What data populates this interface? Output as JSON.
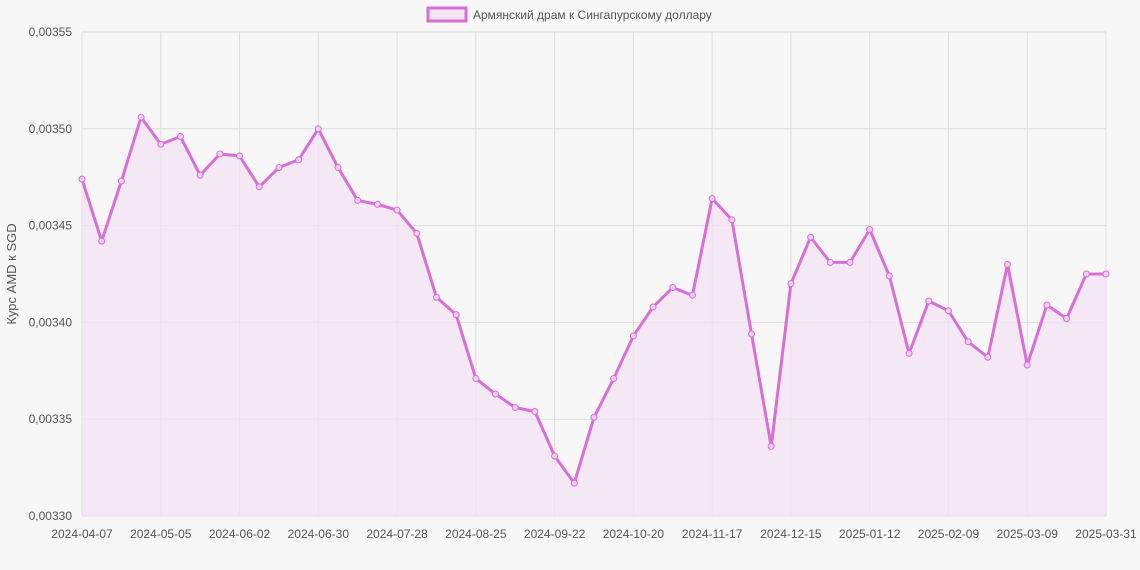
{
  "chart_data": {
    "type": "line",
    "title": "",
    "xlabel": "",
    "ylabel": "Курс AMD к SGD",
    "ylim": [
      0.0033,
      0.00355
    ],
    "y_ticks": [
      "0,00330",
      "0,00335",
      "0,00340",
      "0,00345",
      "0,00350",
      "0,00355"
    ],
    "y_tick_values": [
      0.0033,
      0.00335,
      0.0034,
      0.00345,
      0.0035,
      0.00355
    ],
    "x_ticks": [
      "2024-04-07",
      "2024-05-05",
      "2024-06-02",
      "2024-06-30",
      "2024-07-28",
      "2024-08-25",
      "2024-09-22",
      "2024-10-20",
      "2024-11-17",
      "2024-12-15",
      "2025-01-12",
      "2025-02-09",
      "2025-03-09",
      "2025-03-31"
    ],
    "x_tick_indices": [
      0,
      4,
      8,
      12,
      16,
      20,
      24,
      28,
      32,
      36,
      40,
      44,
      48,
      52
    ],
    "grid": true,
    "legend_position": "top-center",
    "series": [
      {
        "name": "Армянский драм к Сингапурскому доллару",
        "color": "#d86fd8",
        "fill_color": "#f3e3f3",
        "values": [
          0.003474,
          0.003442,
          0.003473,
          0.003506,
          0.003492,
          0.003496,
          0.003476,
          0.003487,
          0.003486,
          0.00347,
          0.00348,
          0.003484,
          0.0035,
          0.00348,
          0.003463,
          0.003461,
          0.003458,
          0.003446,
          0.003413,
          0.003404,
          0.003371,
          0.003363,
          0.003356,
          0.003354,
          0.003331,
          0.003317,
          0.003351,
          0.003371,
          0.003393,
          0.003408,
          0.003418,
          0.003414,
          0.003464,
          0.003453,
          0.003394,
          0.003336,
          0.00342,
          0.003444,
          0.003431,
          0.003431,
          0.003448,
          0.003424,
          0.003384,
          0.003411,
          0.003406,
          0.00339,
          0.003382,
          0.00343,
          0.003378,
          0.003409,
          0.003402,
          0.003425,
          0.003425
        ]
      }
    ]
  }
}
